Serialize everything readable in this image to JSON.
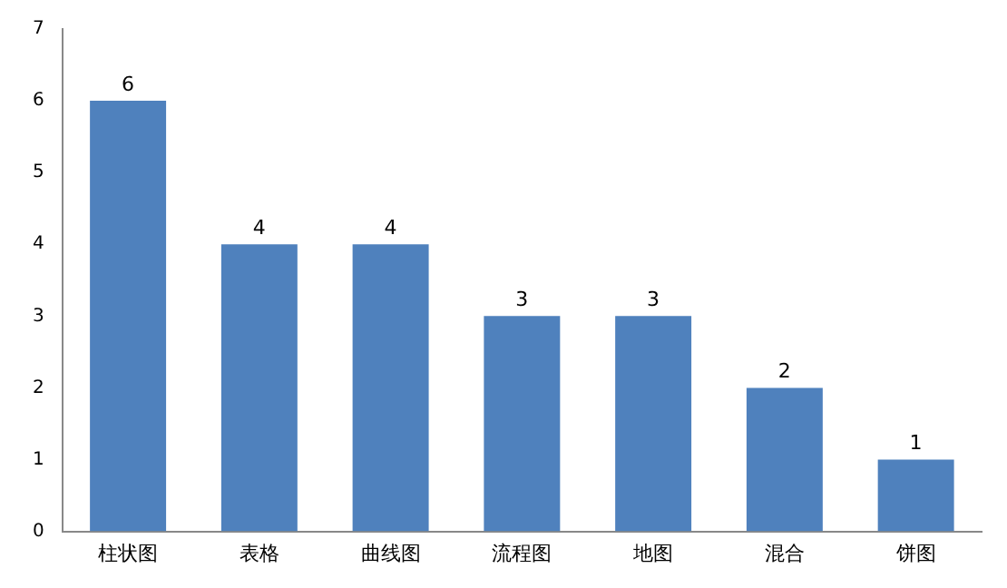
{
  "chart_data": {
    "type": "bar",
    "categories": [
      "柱状图",
      "表格",
      "曲线图",
      "流程图",
      "地图",
      "混合",
      "饼图"
    ],
    "values": [
      6,
      4,
      4,
      3,
      3,
      2,
      1
    ],
    "color": "#4f81bd",
    "ylim": [
      0,
      7
    ],
    "yticks": [
      0,
      1,
      2,
      3,
      4,
      5,
      6,
      7
    ],
    "grid": false,
    "data_labels": true
  }
}
